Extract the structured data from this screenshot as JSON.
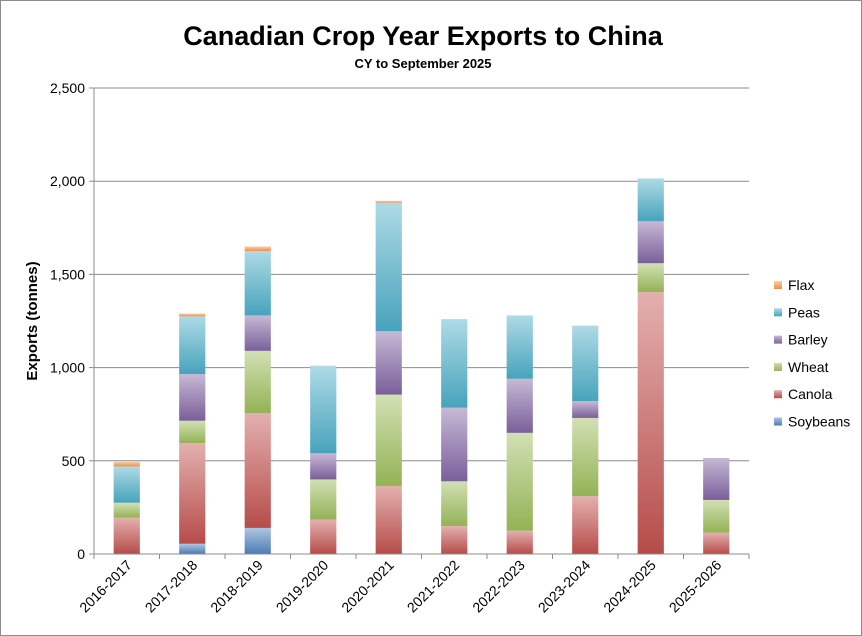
{
  "chart_data": {
    "type": "bar",
    "stacked": true,
    "title": "Canadian Crop Year Exports to China",
    "subtitle": "CY to September 2025",
    "xlabel": "",
    "ylabel": "Exports (tonnes)",
    "ylim": [
      0,
      2500
    ],
    "yticks": [
      0,
      500,
      1000,
      1500,
      2000,
      2500
    ],
    "ytick_labels": [
      "0",
      "500",
      "1,000",
      "1,500",
      "2,000",
      "2,500"
    ],
    "grid": true,
    "legend_position": "right",
    "categories": [
      "2016-2017",
      "2017-2018",
      "2018-2019",
      "2019-2020",
      "2020-2021",
      "2021-2022",
      "2022-2023",
      "2023-2024",
      "2024-2025",
      "2025-2026"
    ],
    "series": [
      {
        "name": "Soybeans",
        "color": "#4f81bd",
        "values": [
          0,
          55,
          140,
          0,
          0,
          0,
          0,
          0,
          0,
          0
        ]
      },
      {
        "name": "Canola",
        "color": "#c0504d",
        "values": [
          195,
          540,
          615,
          185,
          365,
          150,
          125,
          310,
          1405,
          115
        ]
      },
      {
        "name": "Wheat",
        "color": "#9bbb59",
        "values": [
          80,
          120,
          335,
          215,
          490,
          240,
          525,
          420,
          155,
          175
        ]
      },
      {
        "name": "Barley",
        "color": "#8064a2",
        "values": [
          0,
          250,
          190,
          140,
          340,
          395,
          290,
          90,
          225,
          225
        ]
      },
      {
        "name": "Peas",
        "color": "#4bacc6",
        "values": [
          195,
          310,
          345,
          470,
          690,
          475,
          340,
          405,
          230,
          0
        ]
      },
      {
        "name": "Flax",
        "color": "#f79646",
        "values": [
          25,
          15,
          25,
          0,
          10,
          0,
          0,
          0,
          0,
          0
        ]
      }
    ]
  }
}
